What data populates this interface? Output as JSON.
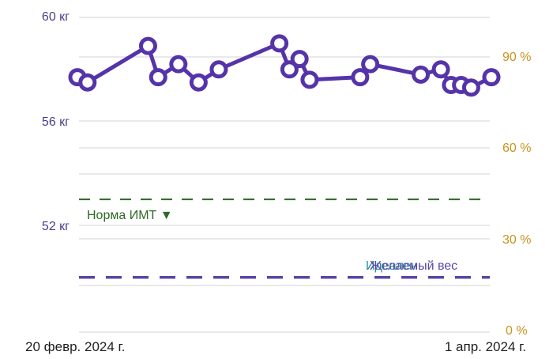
{
  "chart_data": {
    "type": "line",
    "left_axis": {
      "unit": "кг",
      "ticks": [
        "60 кг",
        "56 кг",
        "52 кг"
      ],
      "range": [
        48.3,
        60.5
      ]
    },
    "right_axis": {
      "ticks": [
        "90 %",
        "60 %",
        "30 %",
        "0 %"
      ],
      "range": [
        0,
        100
      ]
    },
    "x_labels": [
      "20 февр. 2024 г.",
      "1 апр. 2024 г."
    ],
    "x_range": [
      "2024-02-20",
      "2024-04-01"
    ],
    "grid": true,
    "series": [
      {
        "color": "#5533a8",
        "x": [
          "2024-02-20",
          "2024-02-21",
          "2024-02-27",
          "2024-02-28",
          "2024-03-01",
          "2024-03-03",
          "2024-03-05",
          "2024-03-11",
          "2024-03-12",
          "2024-03-13",
          "2024-03-14",
          "2024-03-19",
          "2024-03-20",
          "2024-03-25",
          "2024-03-27",
          "2024-03-28",
          "2024-03-29",
          "2024-03-30",
          "2024-04-01"
        ],
        "values": [
          57.7,
          57.5,
          58.9,
          57.7,
          58.2,
          57.5,
          58.0,
          59.0,
          58.0,
          58.4,
          57.6,
          57.7,
          58.2,
          57.8,
          58.0,
          57.4,
          57.4,
          57.3,
          57.7
        ]
      }
    ],
    "reference_lines": [
      {
        "label": "Норма ИМТ ▼",
        "value": 53.0,
        "color": "#2d6a26",
        "style": "dashed"
      },
      {
        "label": "Желаемый вес",
        "value": 50.0,
        "color": "#5a45a8",
        "style": "dashed"
      },
      {
        "label": "Идеален",
        "value": 50.0,
        "color": "#1f8a99",
        "style": "dashed"
      }
    ]
  }
}
